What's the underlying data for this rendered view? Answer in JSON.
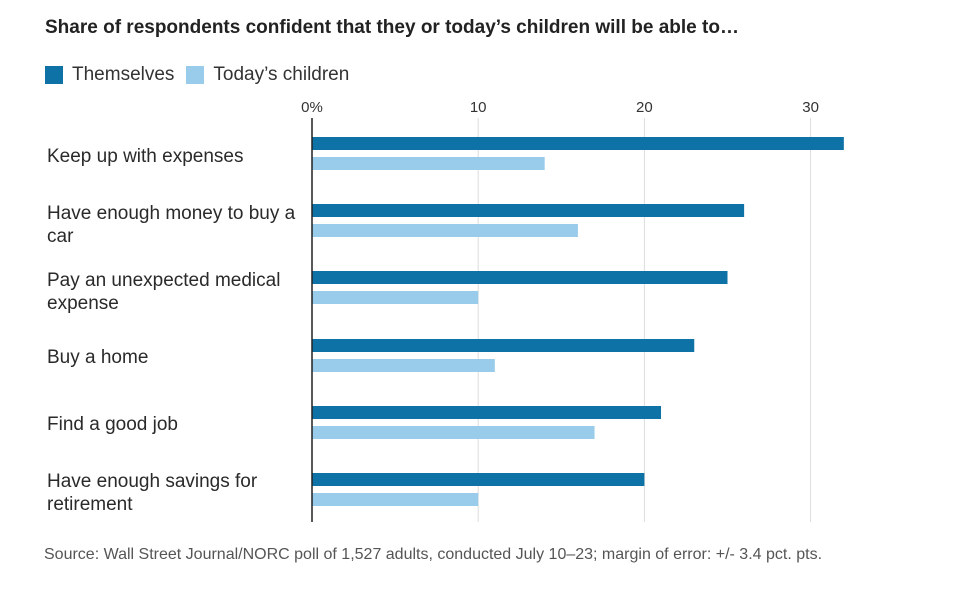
{
  "chart_data": {
    "type": "bar",
    "orientation": "horizontal",
    "title": "Share of respondents confident that they or today’s children will be able to…",
    "categories": [
      "Keep up with expenses",
      "Have enough money to buy a car",
      "Pay an unexpected medical expense",
      "Buy a home",
      "Find a good job",
      "Have enough savings for retirement"
    ],
    "series": [
      {
        "name": "Themselves",
        "color": "#0e72a7",
        "values": [
          32,
          26,
          25,
          23,
          21,
          20
        ]
      },
      {
        "name": "Today’s children",
        "color": "#99cbeb",
        "values": [
          14,
          16,
          10,
          11,
          17,
          10
        ]
      }
    ],
    "xticks": [
      {
        "value": 0,
        "label": "0%"
      },
      {
        "value": 10,
        "label": "10"
      },
      {
        "value": 20,
        "label": "20"
      },
      {
        "value": 30,
        "label": "30"
      }
    ],
    "xlim": [
      0,
      35
    ],
    "grid": true,
    "legend_position": "top-left",
    "source": "Source: Wall Street Journal/NORC poll of 1,527 adults, conducted July 10–23; margin of error: +/- 3.4 pct. pts."
  }
}
